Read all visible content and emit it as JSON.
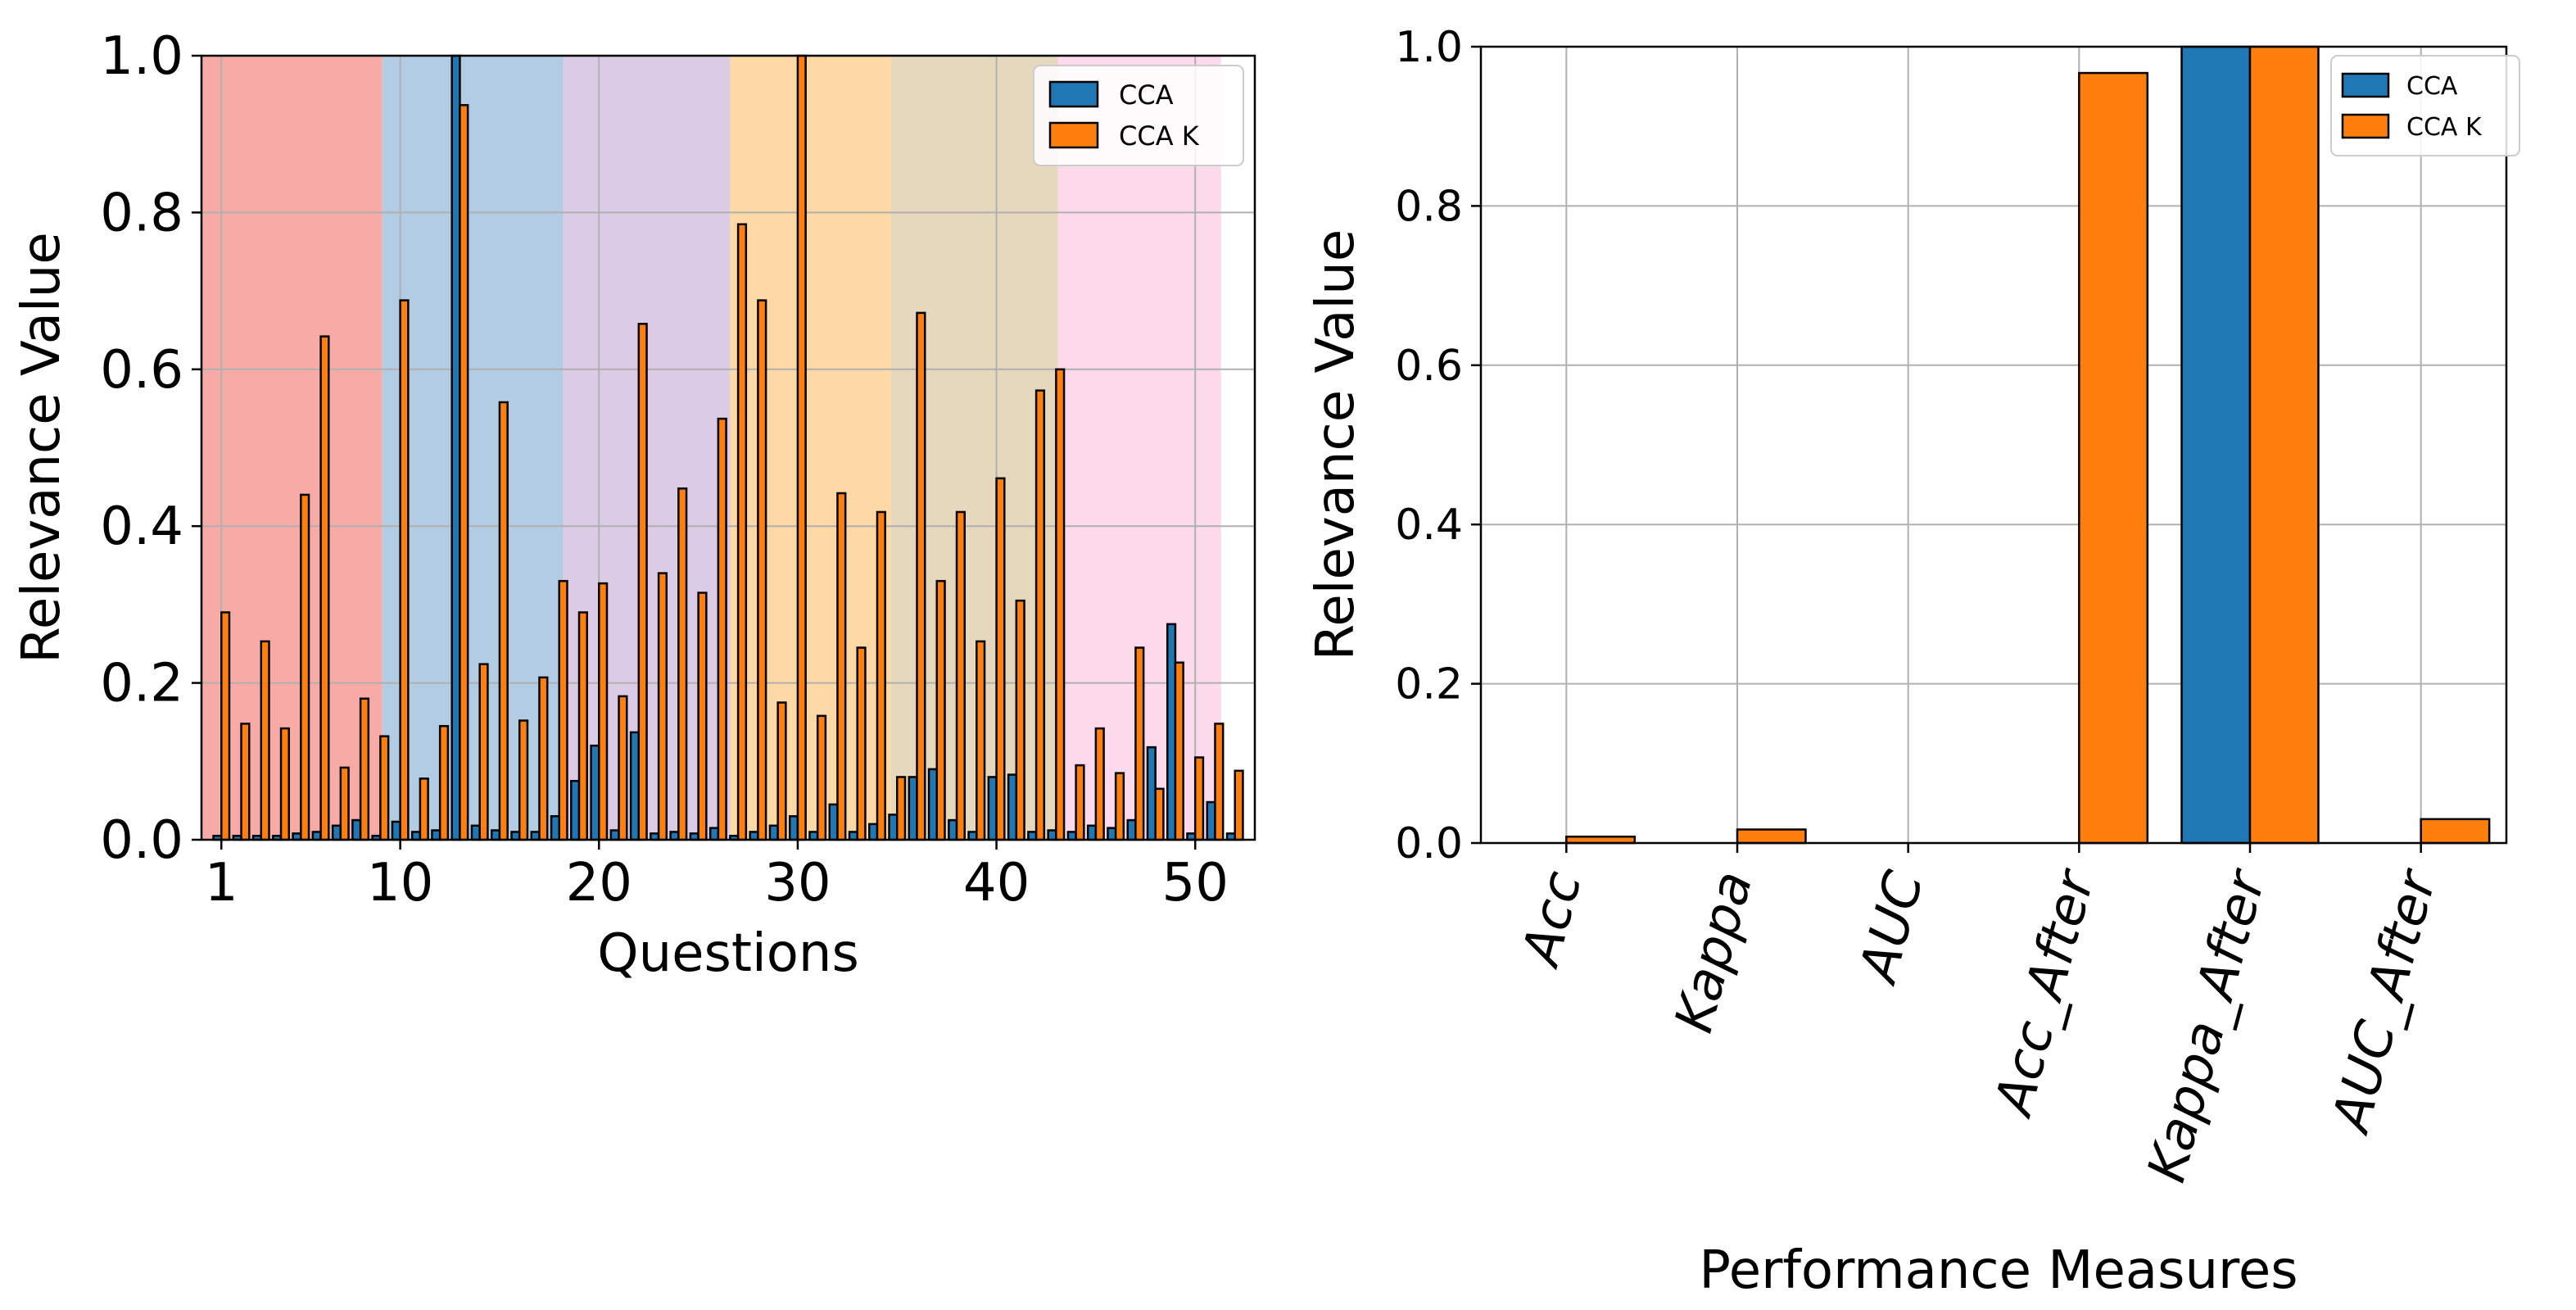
{
  "chart_data": [
    {
      "type": "bar",
      "xlabel": "Questions",
      "ylabel": "Relevance Value",
      "xlim": [
        0,
        53
      ],
      "ylim": [
        0,
        1.0
      ],
      "grid": true,
      "legend_position": "top-right",
      "x_ticks": [
        1,
        10,
        20,
        30,
        40,
        50
      ],
      "y_ticks": [
        "0.0",
        "0.2",
        "0.4",
        "0.6",
        "0.8",
        "1.0"
      ],
      "x": [
        1,
        2,
        3,
        4,
        5,
        6,
        7,
        8,
        9,
        10,
        11,
        12,
        13,
        14,
        15,
        16,
        17,
        18,
        19,
        20,
        21,
        22,
        23,
        24,
        25,
        26,
        27,
        28,
        29,
        30,
        31,
        32,
        33,
        34,
        35,
        36,
        37,
        38,
        39,
        40,
        41,
        42,
        43,
        44,
        45,
        46,
        47,
        48,
        49,
        50,
        51,
        52
      ],
      "series": [
        {
          "name": "CCA",
          "color": "#1f77b4",
          "values": [
            0.005,
            0.005,
            0.005,
            0.005,
            0.008,
            0.01,
            0.018,
            0.025,
            0.005,
            0.023,
            0.01,
            0.012,
            1.0,
            0.018,
            0.012,
            0.01,
            0.01,
            0.03,
            0.075,
            0.12,
            0.012,
            0.137,
            0.008,
            0.01,
            0.008,
            0.015,
            0.005,
            0.01,
            0.018,
            0.03,
            0.01,
            0.045,
            0.01,
            0.02,
            0.032,
            0.08,
            0.09,
            0.025,
            0.01,
            0.08,
            0.083,
            0.01,
            0.012,
            0.01,
            0.018,
            0.015,
            0.025,
            0.118,
            0.275,
            0.008,
            0.048,
            0.008
          ]
        },
        {
          "name": "CCA K",
          "color": "#ff7f0e",
          "values": [
            0.29,
            0.148,
            0.253,
            0.142,
            0.44,
            0.642,
            0.092,
            0.18,
            0.132,
            0.688,
            0.078,
            0.145,
            0.937,
            0.224,
            0.558,
            0.152,
            0.207,
            0.33,
            0.29,
            0.327,
            0.183,
            0.658,
            0.34,
            0.448,
            0.315,
            0.537,
            0.785,
            0.688,
            0.175,
            1.0,
            0.158,
            0.442,
            0.245,
            0.418,
            0.08,
            0.672,
            0.33,
            0.418,
            0.253,
            0.461,
            0.305,
            0.573,
            0.6,
            0.095,
            0.142,
            0.085,
            0.245,
            0.065,
            0.226,
            0.105,
            0.148,
            0.088
          ]
        }
      ],
      "bands": [
        {
          "from": 0,
          "to": 9.1,
          "color": "#f8aaa6"
        },
        {
          "from": 9.1,
          "to": 18.2,
          "color": "#b2cde3"
        },
        {
          "from": 18.2,
          "to": 26.6,
          "color": "#dccbe4"
        },
        {
          "from": 26.6,
          "to": 34.7,
          "color": "#fed9a6"
        },
        {
          "from": 34.7,
          "to": 43.1,
          "color": "#e5d8bd"
        },
        {
          "from": 43.1,
          "to": 51.3,
          "color": "#fcdaec"
        }
      ]
    },
    {
      "type": "bar",
      "xlabel": "Performance Measures",
      "ylabel": "Relevance Value",
      "ylim": [
        0,
        1.0
      ],
      "grid": true,
      "legend_position": "top-right",
      "y_ticks": [
        "0.0",
        "0.2",
        "0.4",
        "0.6",
        "0.8",
        "1.0"
      ],
      "categories": [
        "Acc",
        "Kappa",
        "AUC",
        "Acc_After",
        "Kappa_After",
        "AUC_After"
      ],
      "series": [
        {
          "name": "CCA",
          "color": "#1f77b4",
          "values": [
            0.0,
            0.0,
            0.0,
            0.0,
            1.0,
            0.0
          ]
        },
        {
          "name": "CCA K",
          "color": "#ff7f0e",
          "values": [
            0.008,
            0.017,
            0.0,
            0.967,
            1.0,
            0.03
          ]
        }
      ]
    }
  ]
}
